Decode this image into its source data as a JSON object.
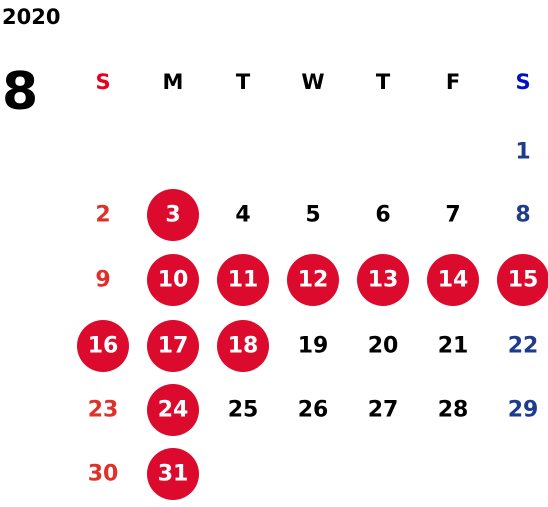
{
  "header": {
    "year": "2020",
    "month": "8"
  },
  "weekdays": [
    "S",
    "M",
    "T",
    "W",
    "T",
    "F",
    "S"
  ],
  "weeks": [
    [
      null,
      null,
      null,
      null,
      null,
      null,
      {
        "day": "1"
      }
    ],
    [
      {
        "day": "2"
      },
      {
        "day": "3",
        "marked": true
      },
      {
        "day": "4"
      },
      {
        "day": "5"
      },
      {
        "day": "6"
      },
      {
        "day": "7"
      },
      {
        "day": "8"
      }
    ],
    [
      {
        "day": "9"
      },
      {
        "day": "10",
        "marked": true
      },
      {
        "day": "11",
        "marked": true
      },
      {
        "day": "12",
        "marked": true
      },
      {
        "day": "13",
        "marked": true
      },
      {
        "day": "14",
        "marked": true
      },
      {
        "day": "15",
        "marked": true
      }
    ],
    [
      {
        "day": "16",
        "marked": true
      },
      {
        "day": "17",
        "marked": true
      },
      {
        "day": "18",
        "marked": true
      },
      {
        "day": "19"
      },
      {
        "day": "20"
      },
      {
        "day": "21"
      },
      {
        "day": "22"
      }
    ],
    [
      {
        "day": "23"
      },
      {
        "day": "24",
        "marked": true
      },
      {
        "day": "25"
      },
      {
        "day": "26"
      },
      {
        "day": "27"
      },
      {
        "day": "28"
      },
      {
        "day": "29"
      }
    ],
    [
      {
        "day": "30"
      },
      {
        "day": "31",
        "marked": true
      },
      null,
      null,
      null,
      null,
      null
    ]
  ]
}
